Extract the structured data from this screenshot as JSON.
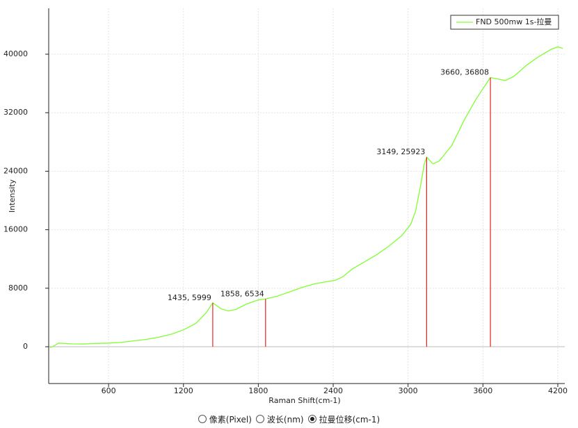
{
  "chart_data": {
    "type": "line",
    "x_label": "Raman Shift(cm-1)",
    "y_label": "Intensity",
    "x": [
      130,
      150,
      200,
      300,
      400,
      500,
      600,
      700,
      800,
      900,
      1000,
      1100,
      1200,
      1300,
      1380,
      1435,
      1500,
      1560,
      1620,
      1700,
      1800,
      1858,
      1950,
      2050,
      2150,
      2250,
      2350,
      2420,
      2480,
      2550,
      2650,
      2750,
      2850,
      2950,
      3020,
      3060,
      3100,
      3130,
      3149,
      3200,
      3250,
      3350,
      3450,
      3550,
      3660,
      3720,
      3780,
      3850,
      3950,
      4050,
      4150,
      4200,
      4240
    ],
    "series": [
      {
        "name": "FND 500mw 1s-拉曼",
        "color": "#80ff30",
        "values": [
          -100,
          0,
          500,
          400,
          380,
          450,
          500,
          600,
          800,
          1000,
          1300,
          1700,
          2300,
          3200,
          4600,
          5999,
          5200,
          4900,
          5100,
          5800,
          6400,
          6534,
          6900,
          7500,
          8100,
          8600,
          8900,
          9100,
          9600,
          10600,
          11600,
          12600,
          13800,
          15200,
          16700,
          18500,
          22000,
          25000,
          25923,
          25000,
          25400,
          27500,
          31000,
          34000,
          36808,
          36600,
          36400,
          37000,
          38500,
          39700,
          40700,
          41000,
          40800
        ]
      }
    ],
    "peaks": [
      {
        "x": 1435,
        "y": 5999,
        "label": "1435, 5999"
      },
      {
        "x": 1858,
        "y": 6534,
        "label": "1858, 6534"
      },
      {
        "x": 3149,
        "y": 25923,
        "label": "3149, 25923"
      },
      {
        "x": 3660,
        "y": 36808,
        "label": "3660, 36808"
      }
    ],
    "peak_color": "#e82020",
    "xlim": [
      120,
      4256
    ],
    "ylim": [
      -5030,
      46270
    ],
    "xticks": [
      600,
      1200,
      1800,
      2400,
      3000,
      3600,
      4200
    ],
    "yticks": [
      0,
      8000,
      16000,
      24000,
      32000,
      40000
    ],
    "grid": true,
    "legend": "top-right"
  },
  "controls": {
    "options": [
      "像素(Pixel)",
      "波长(nm)",
      "拉曼位移(cm-1)"
    ],
    "selected": 2
  }
}
